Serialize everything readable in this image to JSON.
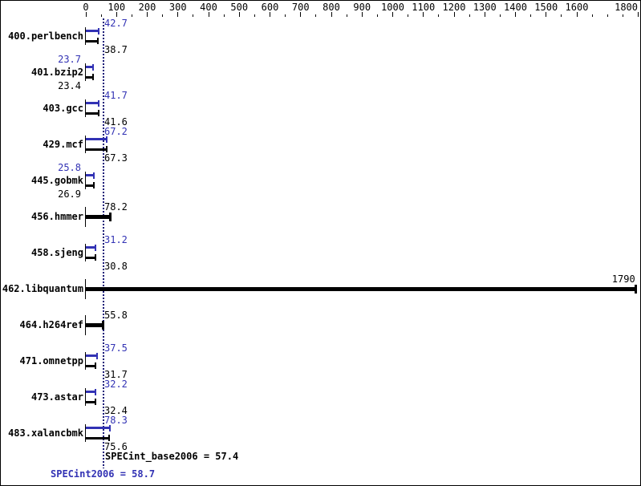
{
  "chart_data": {
    "type": "bar",
    "orientation": "horizontal",
    "title": "",
    "xlabel": "",
    "ylabel": "",
    "x_axis": {
      "min": 0,
      "max": 1800,
      "minor_step": 50,
      "labeled_ticks": [
        0,
        100,
        200,
        300,
        400,
        500,
        600,
        700,
        800,
        900,
        1000,
        1100,
        1200,
        1300,
        1400,
        1500,
        1600,
        1800
      ],
      "grid": false
    },
    "benchmarks": [
      {
        "name": "400.perlbench",
        "peak": 42.7,
        "base": 38.7,
        "peak_text": "42.7",
        "base_text": "38.7",
        "value_label_side": "right"
      },
      {
        "name": "401.bzip2",
        "peak": 23.7,
        "base": 23.4,
        "peak_text": "23.7",
        "base_text": "23.4",
        "value_label_side": "left"
      },
      {
        "name": "403.gcc",
        "peak": 41.7,
        "base": 41.6,
        "peak_text": "41.7",
        "base_text": "41.6",
        "value_label_side": "right"
      },
      {
        "name": "429.mcf",
        "peak": 67.2,
        "base": 67.3,
        "peak_text": "67.2",
        "base_text": "67.3",
        "value_label_side": "right"
      },
      {
        "name": "445.gobmk",
        "peak": 25.8,
        "base": 26.9,
        "peak_text": "25.8",
        "base_text": "26.9",
        "value_label_side": "left"
      },
      {
        "name": "456.hmmer",
        "single": 78.2,
        "single_text": "78.2",
        "value_label_side": "right"
      },
      {
        "name": "458.sjeng",
        "peak": 31.2,
        "base": 30.8,
        "peak_text": "31.2",
        "base_text": "30.8",
        "value_label_side": "right"
      },
      {
        "name": "462.libquantum",
        "single": 1790,
        "single_text": "1790",
        "value_label_side": "end"
      },
      {
        "name": "464.h264ref",
        "single": 55.8,
        "single_text": "55.8",
        "value_label_side": "right"
      },
      {
        "name": "471.omnetpp",
        "peak": 37.5,
        "base": 31.7,
        "peak_text": "37.5",
        "base_text": "31.7",
        "value_label_side": "right"
      },
      {
        "name": "473.astar",
        "peak": 32.2,
        "base": 32.4,
        "peak_text": "32.2",
        "base_text": "32.4",
        "value_label_side": "right"
      },
      {
        "name": "483.xalancbmk",
        "peak": 78.3,
        "base": 75.6,
        "peak_text": "78.3",
        "base_text": "75.6",
        "value_label_side": "right"
      }
    ],
    "summary": {
      "base_text": "SPECint_base2006 = 57.4",
      "base_value": 57.4,
      "peak_text": "SPECint2006 = 58.7",
      "peak_value": 58.7
    },
    "colors": {
      "peak_blue": "#3232b4",
      "base_black": "#000000",
      "median_line": "#1b1b78",
      "tick": "#000000",
      "summary_base": "#000000",
      "summary_peak": "#3232b4",
      "background": "#ffffff",
      "border": "#000000"
    }
  }
}
